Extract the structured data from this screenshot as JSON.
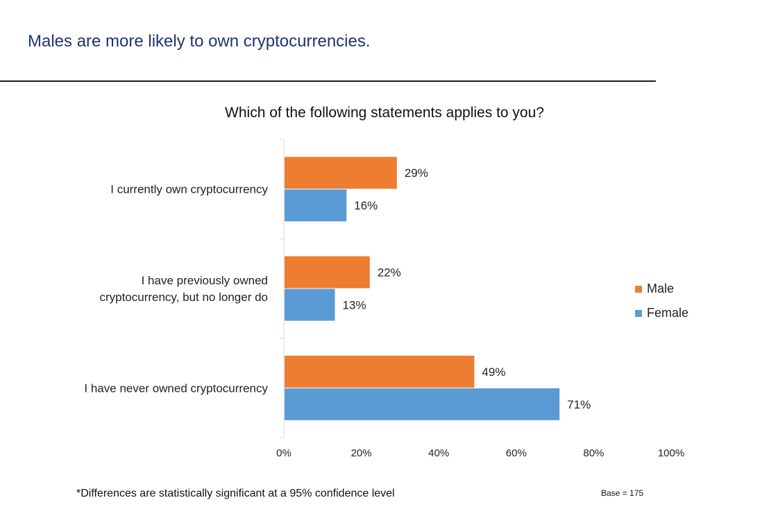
{
  "slide": {
    "title": "Males are more likely to own cryptocurrencies.",
    "footnote": "*Differences are statistically significant at a 95% confidence level",
    "base_note": "Base = 175"
  },
  "chart_data": {
    "type": "bar",
    "orientation": "horizontal",
    "title": "Which of the following statements applies to you?",
    "categories": [
      [
        "I currently own cryptocurrency"
      ],
      [
        "I have previously owned",
        "cryptocurrency, but no longer do"
      ],
      [
        "I have never owned cryptocurrency"
      ]
    ],
    "series": [
      {
        "name": "Male",
        "color": "#ED7D31",
        "values": [
          29,
          22,
          49
        ],
        "labels": [
          "29%",
          "22%",
          "49%"
        ]
      },
      {
        "name": "Female",
        "color": "#5B9BD5",
        "values": [
          16,
          13,
          71
        ],
        "labels": [
          "16%",
          "13%",
          "71%"
        ]
      }
    ],
    "xlim": [
      0,
      100
    ],
    "x_ticks": [
      "0%",
      "20%",
      "40%",
      "60%",
      "80%",
      "100%"
    ],
    "grid": false,
    "legend_position": "right"
  }
}
